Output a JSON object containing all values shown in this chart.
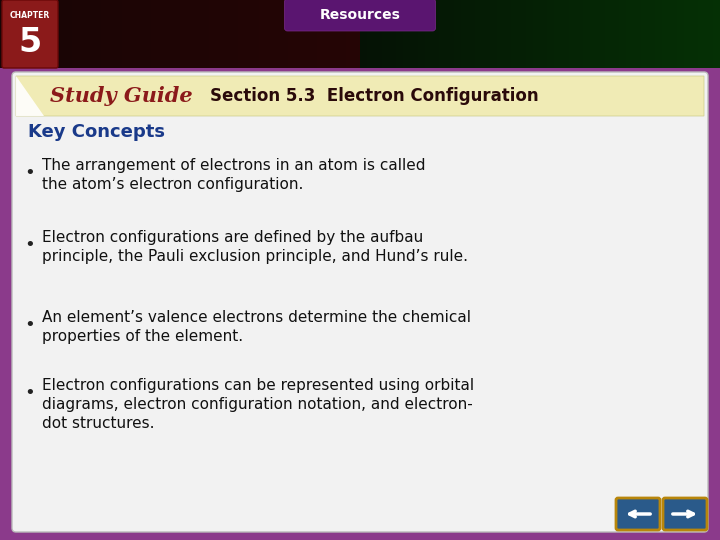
{
  "title_section": "Section 5.3  Electron Configuration",
  "study_guide_text": "Study Guide",
  "key_concepts_label": "Key Concepts",
  "chapter_num": "5",
  "chapter_label": "CHAPTER",
  "resources_label": "Resources",
  "bullets": [
    "The arrangement of electrons in an atom is called\nthe atom’s electron configuration.",
    "Electron configurations are defined by the aufbau\nprinciple, the Pauli exclusion principle, and Hund’s rule.",
    "An element’s valence electrons determine the chemical\nproperties of the element.",
    "Electron configurations can be represented using orbital\ndiagrams, electron configuration notation, and electron-\ndot structures."
  ],
  "bg_outer": "#8B3A8B",
  "chapter_box_color": "#8B1a1a",
  "study_guide_bg": "#f0ebb5",
  "study_guide_color": "#8B1A1A",
  "section_title_color": "#2a0a0a",
  "key_concepts_color": "#1a3a8a",
  "body_bg": "#f2f2f2",
  "bullet_color": "#111111",
  "arrow_fill": "#2a5a8a",
  "arrow_outline": "#b8860b",
  "top_left_color": "#1a0505",
  "top_right_color": "#0a2a0a",
  "resources_bg": "#5a1570"
}
